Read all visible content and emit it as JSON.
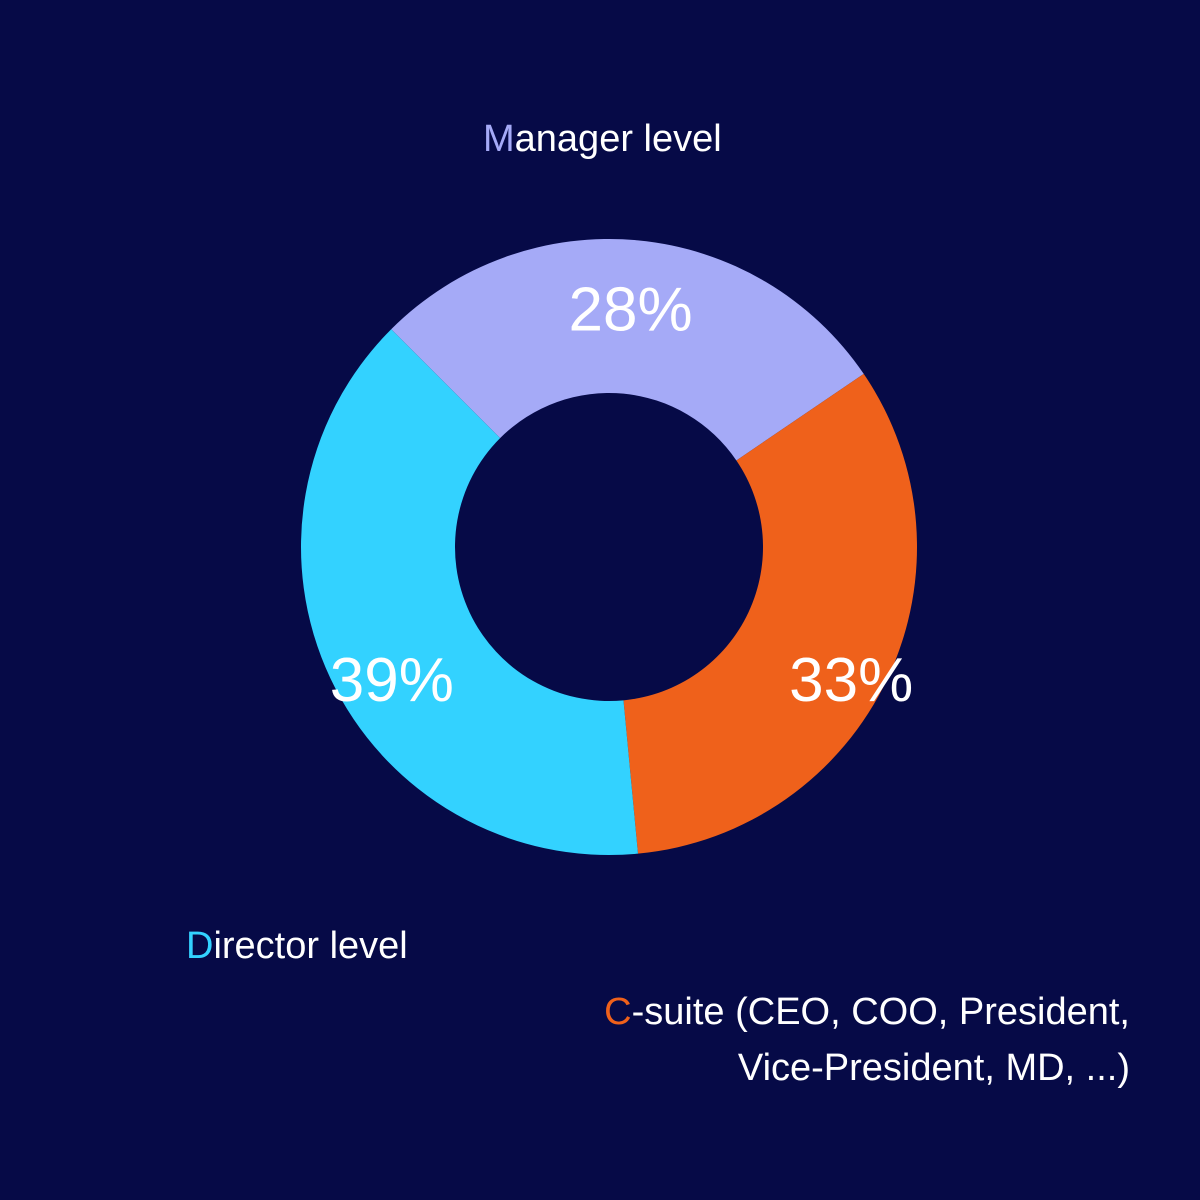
{
  "chart_data": {
    "type": "pie",
    "donut": true,
    "colors": {
      "background": "#060a47"
    },
    "slices": [
      {
        "label_initial": "M",
        "label_rest": "anager level",
        "label_line2": "",
        "value": 28,
        "value_label": "28%",
        "color": "#a5aaf7"
      },
      {
        "label_initial": "C",
        "label_rest": "-suite (CEO, COO, President,",
        "label_line2": "Vice-President, MD, ...)",
        "value": 33,
        "value_label": "33%",
        "color": "#ef611b"
      },
      {
        "label_initial": "D",
        "label_rest": "irector level",
        "label_line2": "",
        "value": 39,
        "value_label": "39%",
        "color": "#33d2ff"
      }
    ]
  }
}
